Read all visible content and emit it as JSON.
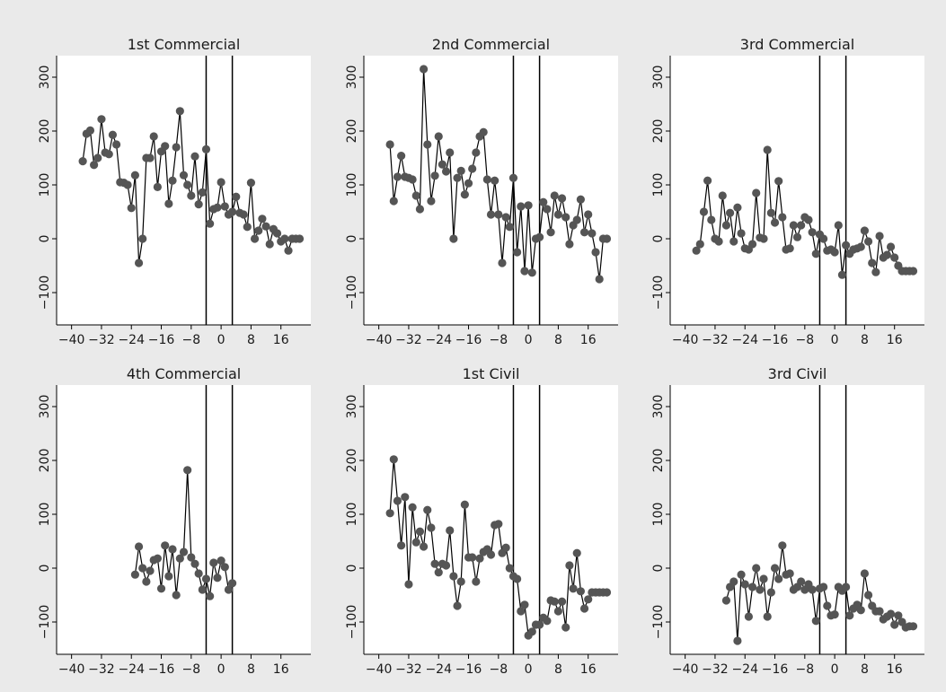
{
  "chart_data": [
    {
      "type": "line",
      "title": "1st Commercial",
      "xlabel": "",
      "ylabel": "",
      "xlim": [
        -44,
        24
      ],
      "ylim": [
        -160,
        340
      ],
      "xticks": [
        -40,
        -32,
        -24,
        -16,
        -8,
        0,
        8,
        16
      ],
      "yticks": [
        -100,
        0,
        100,
        200,
        300
      ],
      "xtick_labels": [
        "−40",
        "−32",
        "−24",
        "−16",
        "−8",
        "0",
        "8",
        "16"
      ],
      "ytick_labels": [
        "−100",
        "0",
        "100",
        "200",
        "300"
      ],
      "vlines": [
        -4,
        3
      ],
      "grid": false,
      "x": [
        -37,
        -36,
        -35,
        -34,
        -33,
        -32,
        -31,
        -30,
        -29,
        -28,
        -27,
        -26,
        -25,
        -24,
        -23,
        -22,
        -21,
        -20,
        -19,
        -18,
        -17,
        -16,
        -15,
        -14,
        -13,
        -12,
        -11,
        -10,
        -9,
        -8,
        -7,
        -6,
        -5,
        -4,
        -3,
        -2,
        -1,
        0,
        1,
        2,
        3,
        4,
        5,
        6,
        7,
        8,
        9,
        10,
        11,
        12,
        13,
        14,
        15,
        16,
        17,
        18,
        19,
        20,
        21
      ],
      "values": [
        144,
        195,
        201,
        137,
        150,
        222,
        160,
        157,
        193,
        175,
        105,
        104,
        100,
        57,
        118,
        -45,
        0,
        150,
        150,
        190,
        96,
        162,
        172,
        65,
        108,
        170,
        237,
        118,
        100,
        80,
        153,
        64,
        86,
        166,
        28,
        55,
        58,
        105,
        60,
        45,
        50,
        78,
        48,
        45,
        22,
        104,
        0,
        15,
        37,
        23,
        -10,
        18,
        10,
        -5,
        0,
        -22,
        0,
        0,
        0
      ]
    },
    {
      "type": "line",
      "title": "2nd Commercial",
      "xlabel": "",
      "ylabel": "",
      "xlim": [
        -44,
        24
      ],
      "ylim": [
        -160,
        340
      ],
      "xticks": [
        -40,
        -32,
        -24,
        -16,
        -8,
        0,
        8,
        16
      ],
      "yticks": [
        -100,
        0,
        100,
        200,
        300
      ],
      "xtick_labels": [
        "−40",
        "−32",
        "−24",
        "−16",
        "−8",
        "0",
        "8",
        "16"
      ],
      "ytick_labels": [
        "−100",
        "0",
        "100",
        "200",
        "300"
      ],
      "vlines": [
        -4,
        3
      ],
      "grid": false,
      "x": [
        -37,
        -36,
        -35,
        -34,
        -33,
        -32,
        -31,
        -30,
        -29,
        -28,
        -27,
        -26,
        -25,
        -24,
        -23,
        -22,
        -21,
        -20,
        -19,
        -18,
        -17,
        -16,
        -15,
        -14,
        -13,
        -12,
        -11,
        -10,
        -9,
        -8,
        -7,
        -6,
        -5,
        -4,
        -3,
        -2,
        -1,
        0,
        1,
        2,
        3,
        4,
        5,
        6,
        7,
        8,
        9,
        10,
        11,
        12,
        13,
        14,
        15,
        16,
        17,
        18,
        19,
        20,
        21
      ],
      "values": [
        175,
        70,
        115,
        154,
        115,
        113,
        110,
        80,
        55,
        315,
        175,
        70,
        117,
        190,
        138,
        125,
        160,
        0,
        113,
        126,
        82,
        103,
        130,
        160,
        190,
        198,
        110,
        45,
        108,
        45,
        -45,
        40,
        22,
        113,
        -25,
        60,
        -60,
        62,
        -63,
        0,
        3,
        68,
        55,
        12,
        80,
        45,
        75,
        40,
        -10,
        25,
        35,
        73,
        12,
        45,
        10,
        -25,
        -75,
        0,
        0
      ]
    },
    {
      "type": "line",
      "title": "3rd Commercial",
      "xlabel": "",
      "ylabel": "",
      "xlim": [
        -44,
        24
      ],
      "ylim": [
        -160,
        340
      ],
      "xticks": [
        -40,
        -32,
        -24,
        -16,
        -8,
        0,
        8,
        16
      ],
      "yticks": [
        -100,
        0,
        100,
        200,
        300
      ],
      "xtick_labels": [
        "−40",
        "−32",
        "−24",
        "−16",
        "−8",
        "0",
        "8",
        "16"
      ],
      "ytick_labels": [
        "−100",
        "0",
        "100",
        "200",
        "300"
      ],
      "vlines": [
        -4,
        3
      ],
      "grid": false,
      "x": [
        -37,
        -36,
        -35,
        -34,
        -33,
        -32,
        -31,
        -30,
        -29,
        -28,
        -27,
        -26,
        -25,
        -24,
        -23,
        -22,
        -21,
        -20,
        -19,
        -18,
        -17,
        -16,
        -15,
        -14,
        -13,
        -12,
        -11,
        -10,
        -9,
        -8,
        -7,
        -6,
        -5,
        -4,
        -3,
        -2,
        -1,
        0,
        1,
        2,
        3,
        4,
        5,
        6,
        7,
        8,
        9,
        10,
        11,
        12,
        13,
        14,
        15,
        16,
        17,
        18,
        19,
        20,
        21
      ],
      "values": [
        -22,
        -10,
        50,
        108,
        35,
        0,
        -5,
        80,
        25,
        48,
        -5,
        58,
        10,
        -18,
        -20,
        -10,
        85,
        2,
        0,
        165,
        48,
        30,
        107,
        40,
        -20,
        -18,
        25,
        3,
        25,
        40,
        35,
        12,
        -28,
        8,
        0,
        -22,
        -20,
        -25,
        25,
        -67,
        -12,
        -28,
        -20,
        -18,
        -15,
        15,
        -5,
        -45,
        -62,
        5,
        -35,
        -30,
        -15,
        -35,
        -50,
        -60,
        -60,
        -60,
        -60
      ]
    },
    {
      "type": "line",
      "title": "4th Commercial",
      "xlabel": "",
      "ylabel": "",
      "xlim": [
        -44,
        24
      ],
      "ylim": [
        -160,
        340
      ],
      "xticks": [
        -40,
        -32,
        -24,
        -16,
        -8,
        0,
        8,
        16
      ],
      "yticks": [
        -100,
        0,
        100,
        200,
        300
      ],
      "xtick_labels": [
        "−40",
        "−32",
        "−24",
        "−16",
        "−8",
        "0",
        "8",
        "16"
      ],
      "ytick_labels": [
        "−100",
        "0",
        "100",
        "200",
        "300"
      ],
      "vlines": [
        -4,
        3
      ],
      "grid": false,
      "x": [
        -23,
        -22,
        -21,
        -20,
        -19,
        -18,
        -17,
        -16,
        -15,
        -14,
        -13,
        -12,
        -11,
        -10,
        -9,
        -8,
        -7,
        -6,
        -5,
        -4,
        -3,
        -2,
        -1,
        0,
        1,
        2,
        3
      ],
      "values": [
        -12,
        40,
        0,
        -25,
        -5,
        15,
        18,
        -38,
        42,
        -15,
        35,
        -50,
        18,
        30,
        182,
        20,
        8,
        -10,
        -40,
        -20,
        -52,
        10,
        -18,
        14,
        2,
        -40,
        -28
      ]
    },
    {
      "type": "line",
      "title": "1st Civil",
      "xlabel": "",
      "ylabel": "",
      "xlim": [
        -44,
        24
      ],
      "ylim": [
        -160,
        340
      ],
      "xticks": [
        -40,
        -32,
        -24,
        -16,
        -8,
        0,
        8,
        16
      ],
      "yticks": [
        -100,
        0,
        100,
        200,
        300
      ],
      "xtick_labels": [
        "−40",
        "−32",
        "−24",
        "−16",
        "−8",
        "0",
        "8",
        "16"
      ],
      "ytick_labels": [
        "−100",
        "0",
        "100",
        "200",
        "300"
      ],
      "vlines": [
        -4,
        3
      ],
      "grid": false,
      "x": [
        -37,
        -36,
        -35,
        -34,
        -33,
        -32,
        -31,
        -30,
        -29,
        -28,
        -27,
        -26,
        -25,
        -24,
        -23,
        -22,
        -21,
        -20,
        -19,
        -18,
        -17,
        -16,
        -15,
        -14,
        -13,
        -12,
        -11,
        -10,
        -9,
        -8,
        -7,
        -6,
        -5,
        -4,
        -3,
        -2,
        -1,
        0,
        1,
        2,
        3,
        4,
        5,
        6,
        7,
        8,
        9,
        10,
        11,
        12,
        13,
        14,
        15,
        16,
        17,
        18,
        19,
        20,
        21
      ],
      "values": [
        102,
        202,
        125,
        42,
        132,
        -30,
        113,
        48,
        68,
        40,
        108,
        75,
        8,
        -8,
        8,
        5,
        70,
        -15,
        -70,
        -25,
        118,
        20,
        20,
        -25,
        18,
        30,
        35,
        25,
        80,
        82,
        28,
        38,
        0,
        -15,
        -20,
        -80,
        -68,
        -125,
        -118,
        -105,
        -105,
        -92,
        -98,
        -60,
        -62,
        -80,
        -62,
        -110,
        5,
        -38,
        28,
        -43,
        -75,
        -58,
        -45,
        -45,
        -45,
        -45,
        -45
      ]
    },
    {
      "type": "line",
      "title": "3rd Civil",
      "xlabel": "",
      "ylabel": "",
      "xlim": [
        -44,
        24
      ],
      "ylim": [
        -160,
        340
      ],
      "xticks": [
        -40,
        -32,
        -24,
        -16,
        -8,
        0,
        8,
        16
      ],
      "yticks": [
        -100,
        0,
        100,
        200,
        300
      ],
      "xtick_labels": [
        "−40",
        "−32",
        "−24",
        "−16",
        "−8",
        "0",
        "8",
        "16"
      ],
      "ytick_labels": [
        "−100",
        "0",
        "100",
        "200",
        "300"
      ],
      "vlines": [
        -4,
        3
      ],
      "grid": false,
      "x": [
        -29,
        -28,
        -27,
        -26,
        -25,
        -24,
        -23,
        -22,
        -21,
        -20,
        -19,
        -18,
        -17,
        -16,
        -15,
        -14,
        -13,
        -12,
        -11,
        -10,
        -9,
        -8,
        -7,
        -6,
        -5,
        -4,
        -3,
        -2,
        -1,
        0,
        1,
        2,
        3,
        4,
        5,
        6,
        7,
        8,
        9,
        10,
        11,
        12,
        13,
        14,
        15,
        16,
        17,
        18,
        19,
        20,
        21
      ],
      "values": [
        -60,
        -35,
        -25,
        -135,
        -12,
        -30,
        -90,
        -35,
        0,
        -40,
        -20,
        -90,
        -45,
        0,
        -20,
        42,
        -12,
        -10,
        -40,
        -35,
        -25,
        -40,
        -30,
        -40,
        -98,
        -38,
        -35,
        -70,
        -88,
        -86,
        -35,
        -42,
        -35,
        -88,
        -75,
        -68,
        -78,
        -10,
        -50,
        -70,
        -80,
        -80,
        -95,
        -90,
        -85,
        -105,
        -88,
        -100,
        -110,
        -108,
        -108
      ]
    }
  ]
}
